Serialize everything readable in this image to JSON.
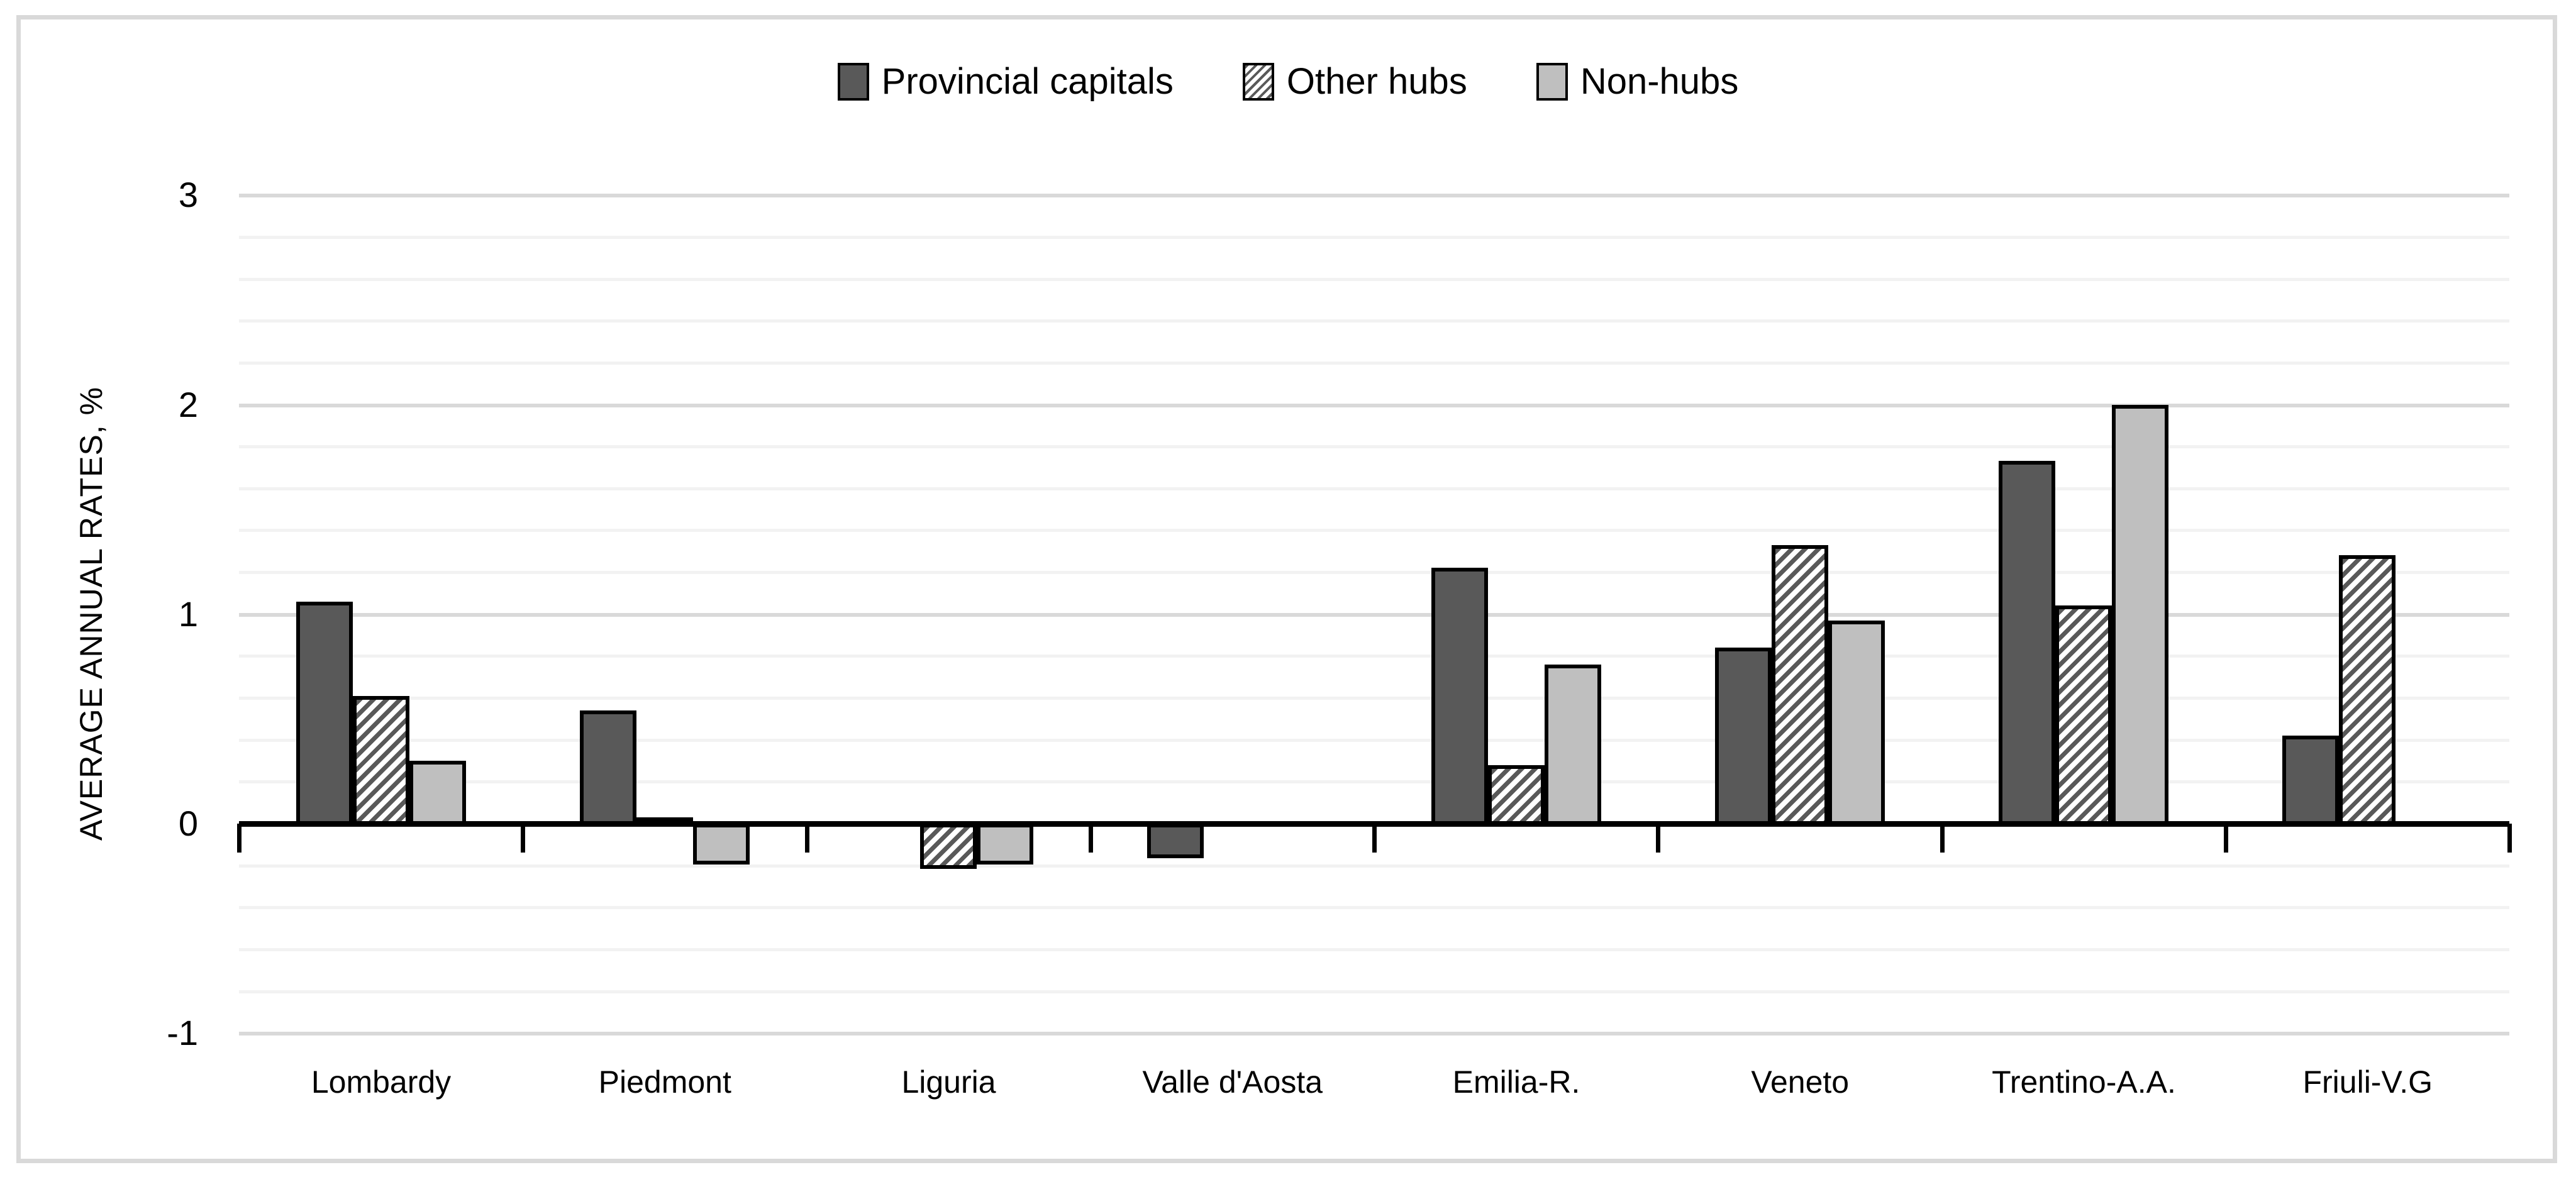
{
  "chart_data": {
    "type": "bar",
    "title": "",
    "xlabel": "",
    "ylabel": "AVERAGE ANNUAL RATES, %",
    "categories": [
      "Lombardy",
      "Piedmont",
      "Liguria",
      "Valle d'Aosta",
      "Emilia-R.",
      "Veneto",
      "Trentino-A.A.",
      "Friuli-V.G"
    ],
    "series": [
      {
        "name": "Provincial capitals",
        "pattern": "solid",
        "color": "#595959",
        "values": [
          1.06,
          0.54,
          0,
          -0.15,
          1.22,
          0.84,
          1.73,
          0.42
        ]
      },
      {
        "name": "Other hubs",
        "pattern": "diagonal-hatch",
        "color": "#595959",
        "values": [
          0.61,
          0.03,
          -0.2,
          0,
          0.28,
          1.33,
          1.04,
          1.28
        ]
      },
      {
        "name": "Non-hubs",
        "pattern": "solid",
        "color": "#BFBFBF",
        "values": [
          0.3,
          -0.18,
          -0.18,
          0,
          0.76,
          0.97,
          2.0,
          0
        ]
      }
    ],
    "ylim": [
      -1,
      3
    ],
    "yticks": [
      3,
      2,
      1,
      0,
      -1
    ],
    "gridline_step": 0.2,
    "grid": true,
    "legend_position": "top-center",
    "colors": {
      "minor_grid": "#F2F2F2",
      "major_grid": "#D9D9D9",
      "axis": "#000000",
      "frame_border": "#D9D9D9",
      "hatch_background": "#FFFFFF",
      "background": "#FFFFFF",
      "text": "#000000"
    }
  }
}
